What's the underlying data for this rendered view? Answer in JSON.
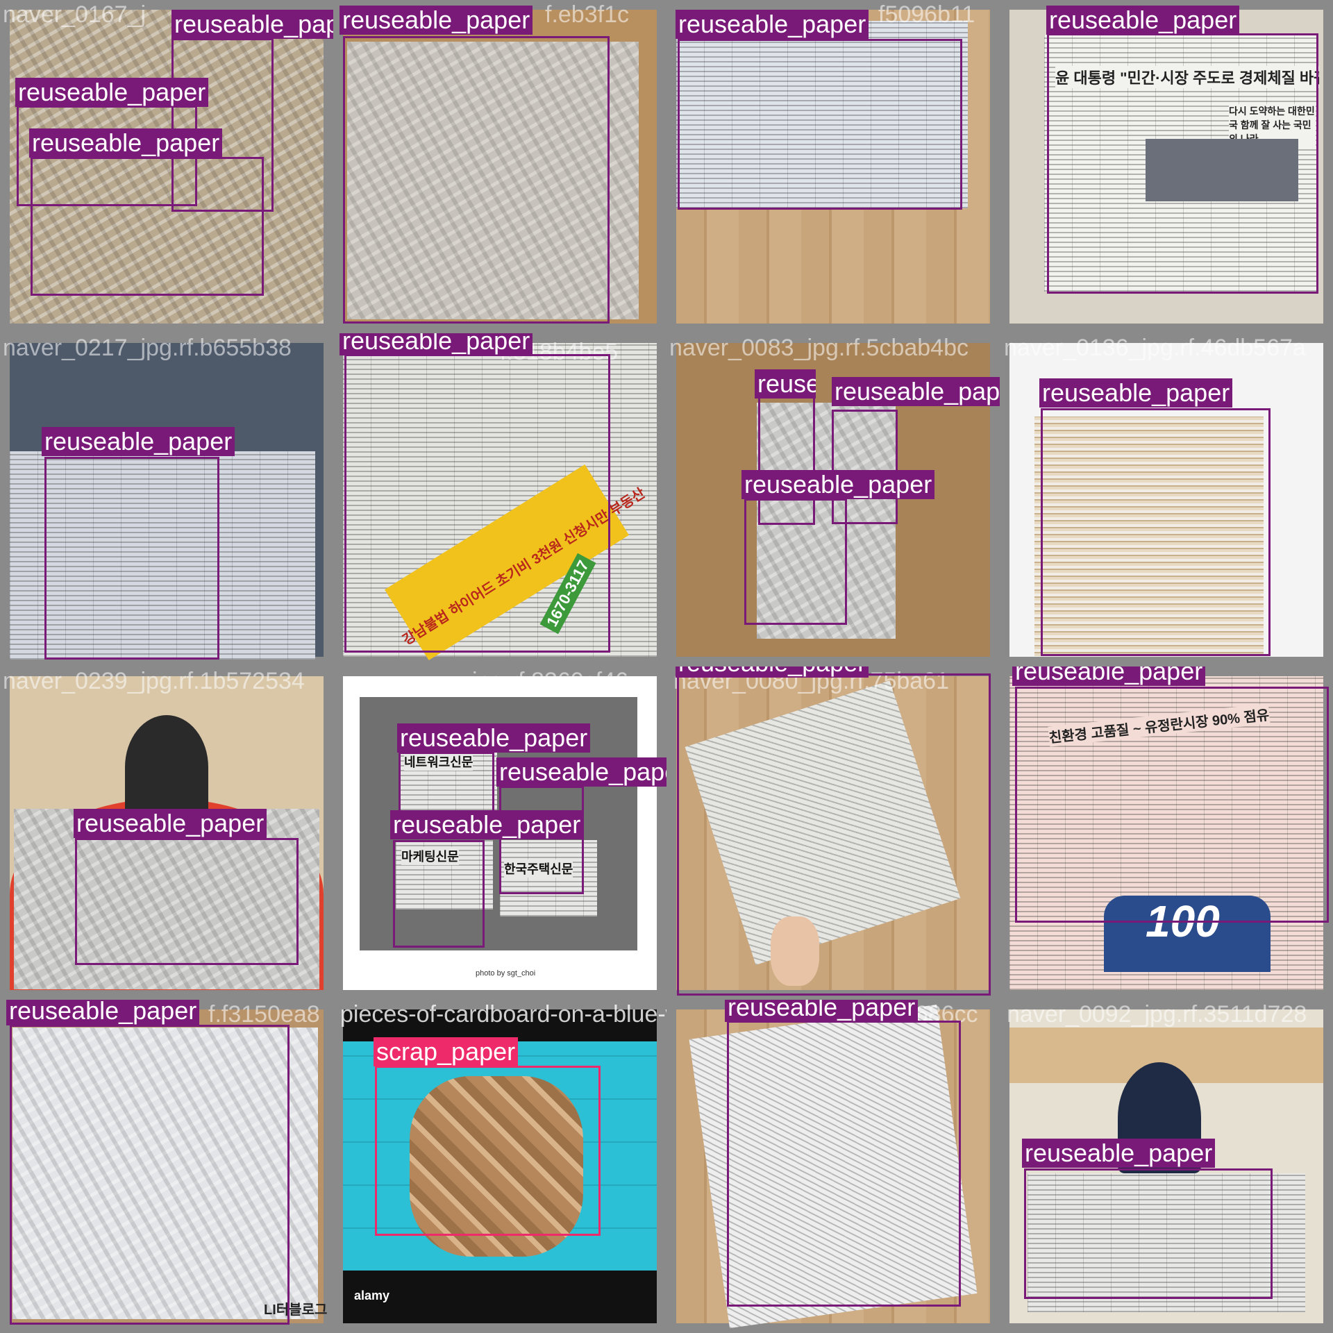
{
  "colors": {
    "reuseable_paper": "#7a1a78",
    "scrap_paper": "#ee2a6b"
  },
  "tiles": [
    {
      "filename": "naver_0167_j",
      "labels": [
        "reuseable_paper",
        "reuseable_paper",
        "reuseable_paper"
      ]
    },
    {
      "filename": "f.eb3f1c",
      "labels": [
        "reuseable_paper"
      ]
    },
    {
      "filename": "f5096b11",
      "labels": [
        "reuseable_paper"
      ]
    },
    {
      "filename": "",
      "labels": [
        "reuseable_paper"
      ]
    },
    {
      "filename": "naver_0217_jpg.rf.b655b38",
      "labels": [
        "reuseable_paper"
      ]
    },
    {
      "filename": "f.318b4be5",
      "labels": [
        "reuseable_paper"
      ]
    },
    {
      "filename": "naver_0083_jpg.rf.5cbab4bc",
      "labels": [
        "reuseable_paper",
        "reuseable_paper",
        "reuseable_paper"
      ]
    },
    {
      "filename": "naver_0136_jpg.rf.46db567a",
      "labels": [
        "reuseable_paper"
      ]
    },
    {
      "filename": "naver_0239_jpg.rf.1b572534",
      "labels": [
        "reuseable_paper"
      ]
    },
    {
      "filename": "jpg.rf.8360cf46",
      "labels": [
        "reuseable_paper",
        "reuseable_paper",
        "reuseable_paper"
      ]
    },
    {
      "filename": "naver_0080_jpg.rf.75ba61",
      "labels": [
        "reuseable_paper"
      ]
    },
    {
      "filename": "",
      "labels": [
        "reuseable_paper"
      ]
    },
    {
      "filename": "f.f3150ea8",
      "labels": [
        "reuseable_paper"
      ]
    },
    {
      "filename": "pieces-of-cardboard-on-a-blue-wood-background",
      "labels": [
        "scrap_paper"
      ]
    },
    {
      "filename": "b1686cc",
      "labels": [
        "reuseable_paper"
      ]
    },
    {
      "filename": "naver_0092_jpg.rf.3511d728",
      "labels": [
        "reuseable_paper"
      ]
    }
  ],
  "tile_texts": {
    "t4_headline": "윤 대통령 \"민간·시장 주도로 경제체질 바꿔야\"",
    "t4_sub": "다시 도약하는 대한민국 함께 잘 사는 국민의 나라",
    "t6_phone": "1670-3117",
    "t6_banner": "강남불법 하이어드 초기비 3천원 신청시만 부동산",
    "t10_a": "네트워크신문",
    "t10_b": "마케팅신문",
    "t10_c": "한국주택신문",
    "t10_credit": "photo by sgt_choi",
    "t12_headline": "친환경 고품질 ~ 유정란시장 90% 점유",
    "t12_big": "100",
    "t13_logo": "LI터블로그",
    "t14_alamy": "alamy"
  }
}
